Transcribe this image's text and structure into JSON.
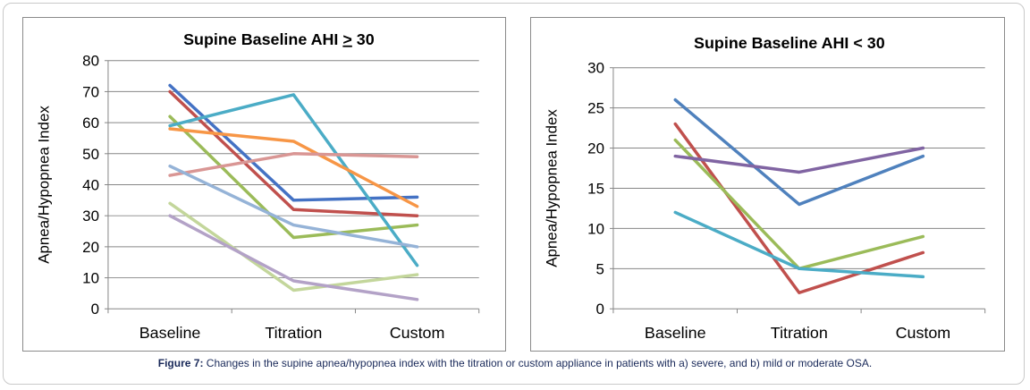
{
  "caption": {
    "label": "Figure 7:",
    "text": " Changes in the supine apnea/hypopnea index with the titration or custom appliance in patients with a) severe, and b) mild or moderate OSA."
  },
  "chart_data": [
    {
      "type": "line",
      "title_prefix": "Supine Baseline AHI ",
      "title_symbol": ">",
      "title_suffix": " 30",
      "ylabel": "Apnea/Hypopnea Index",
      "xlabel": "",
      "categories": [
        "Baseline",
        "Titration",
        "Custom"
      ],
      "ylim": [
        0,
        80
      ],
      "yticks": [
        0,
        10,
        20,
        30,
        40,
        50,
        60,
        70,
        80
      ],
      "grid": true,
      "legend": "none",
      "series": [
        {
          "color": "#4472c4",
          "values": [
            72,
            35,
            36
          ]
        },
        {
          "color": "#c0504d",
          "values": [
            70,
            32,
            30
          ]
        },
        {
          "color": "#9bbb59",
          "values": [
            62,
            23,
            27
          ]
        },
        {
          "color": "#4bacc6",
          "values": [
            59,
            69,
            14
          ]
        },
        {
          "color": "#f79646",
          "values": [
            58,
            54,
            33
          ]
        },
        {
          "color": "#d99694",
          "values": [
            43,
            50,
            49
          ]
        },
        {
          "color": "#95b3d7",
          "values": [
            46,
            27,
            20
          ]
        },
        {
          "color": "#c3d69b",
          "values": [
            34,
            6,
            11
          ]
        },
        {
          "color": "#b3a2c7",
          "values": [
            30,
            9,
            3
          ]
        }
      ]
    },
    {
      "type": "line",
      "title": "Supine Baseline AHI < 30",
      "ylabel": "Apnea/Hypopnea Index",
      "xlabel": "",
      "categories": [
        "Baseline",
        "Titration",
        "Custom"
      ],
      "ylim": [
        0,
        30
      ],
      "yticks": [
        0,
        5,
        10,
        15,
        20,
        25,
        30
      ],
      "grid": true,
      "legend": "none",
      "series": [
        {
          "color": "#4f81bd",
          "values": [
            26,
            13,
            19
          ]
        },
        {
          "color": "#c0504d",
          "values": [
            23,
            2,
            7
          ]
        },
        {
          "color": "#9bbb59",
          "values": [
            21,
            5,
            9
          ]
        },
        {
          "color": "#8064a2",
          "values": [
            19,
            17,
            20
          ]
        },
        {
          "color": "#4bacc6",
          "values": [
            12,
            5,
            4
          ]
        }
      ]
    }
  ]
}
